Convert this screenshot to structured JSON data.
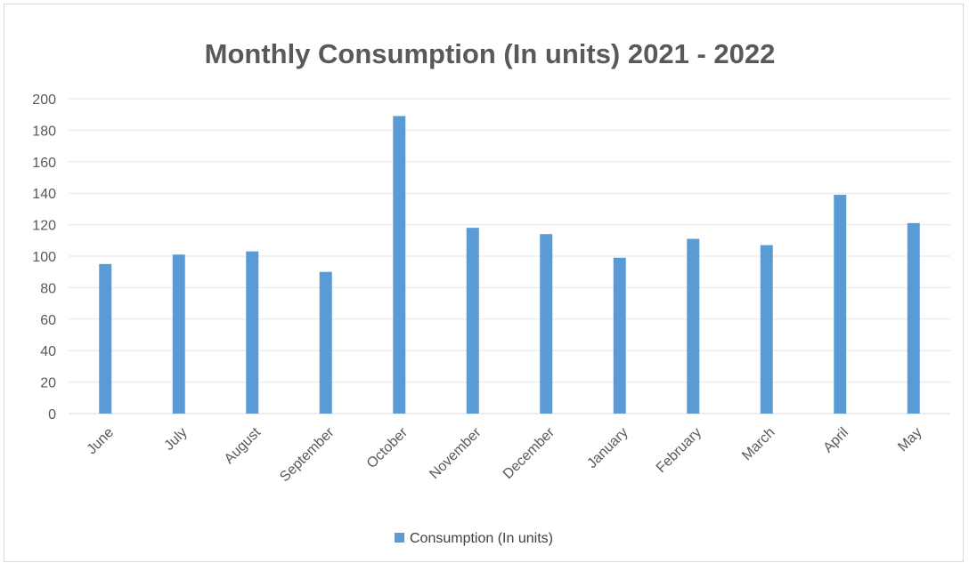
{
  "chart_data": {
    "type": "bar",
    "title": "Monthly Consumption (In units) 2021 - 2022",
    "xlabel": "",
    "ylabel": "",
    "categories": [
      "June",
      "July",
      "August",
      "September",
      "October",
      "November",
      "December",
      "January",
      "February",
      "March",
      "April",
      "May"
    ],
    "series": [
      {
        "name": "Consumption (In units)",
        "values": [
          95,
          101,
          103,
          90,
          189,
          118,
          114,
          99,
          111,
          107,
          139,
          121
        ],
        "color": "#5b9bd5"
      }
    ],
    "ylim": [
      0,
      200
    ],
    "yticks": [
      0,
      20,
      40,
      60,
      80,
      100,
      120,
      140,
      160,
      180,
      200
    ],
    "grid": true,
    "legend_position": "bottom"
  }
}
